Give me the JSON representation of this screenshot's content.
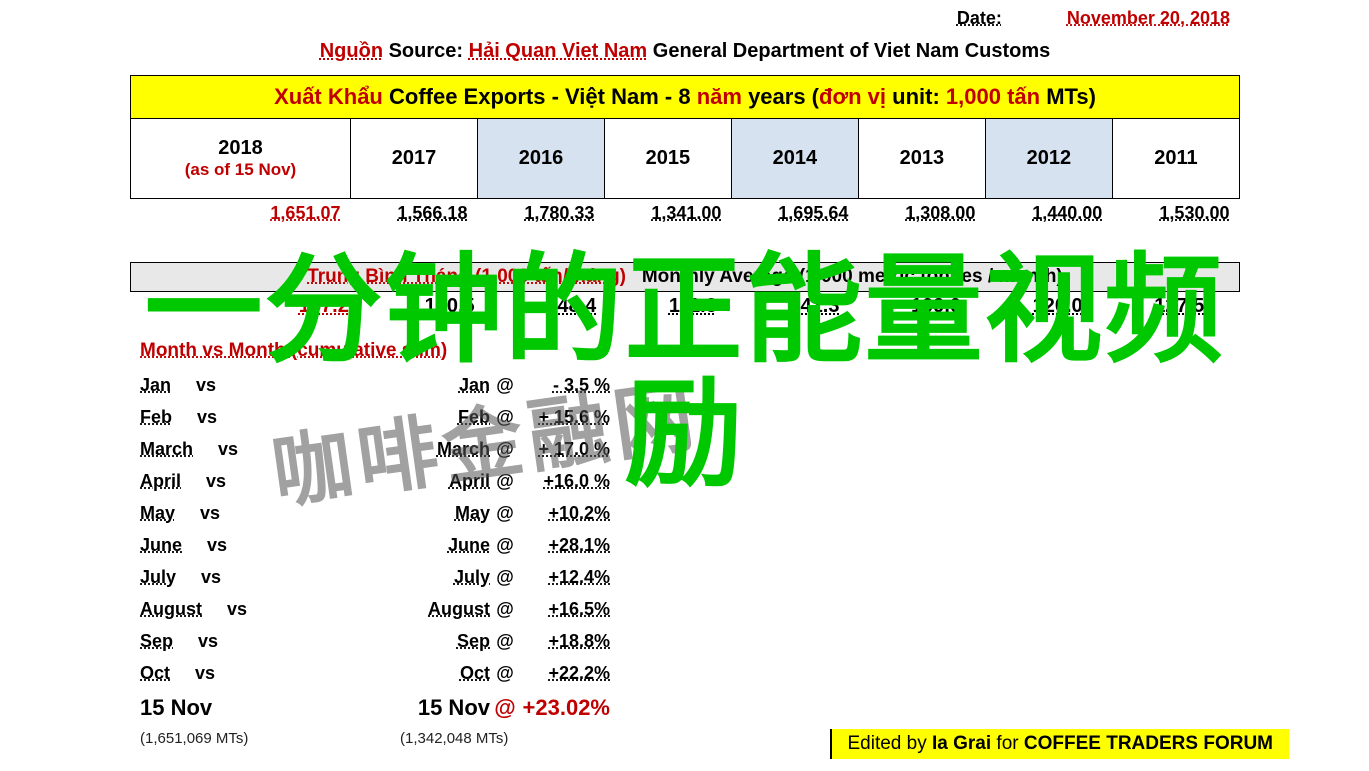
{
  "date": {
    "label": "Date:",
    "value": "November 20, 2018"
  },
  "source": {
    "nguon": "Nguồn",
    "src": "Source:",
    "haiquan": "Hải Quan Viet Nam",
    "gdept": "General Department of Viet Nam Customs"
  },
  "title": {
    "xk": "Xuất Khẩu",
    "ce": "Coffee Exports - Việt Nam - 8",
    "nam": "năm",
    "years": "years (",
    "donvi": "đơn vị",
    "unit": "unit:",
    "qty": "1,000 tấn",
    "mts": "MTs)"
  },
  "years": {
    "y2018": "2018",
    "asof": "(as of 15 Nov)",
    "list": [
      "2017",
      "2016",
      "2015",
      "2014",
      "2013",
      "2012",
      "2011"
    ]
  },
  "totals": [
    "1,651.07",
    "1,566.18",
    "1,780.33",
    "1,341.00",
    "1,695.64",
    "1,308.00",
    "1,440.00",
    "1,530.00"
  ],
  "monthly_header": {
    "vn": "Trung Bình Tháng (1.000 tấn/tháng)",
    "en": "Monthly Average (1,000 metric tonnes / month)"
  },
  "monthly_avg": [
    "157.2",
    "130.5",
    "148.4",
    "111.8",
    "141.3",
    "109.0",
    "120.0",
    "127.5"
  ],
  "mvm": {
    "title": "Month vs Month (cumulative sum)",
    "rows": [
      {
        "a": "Jan",
        "vs": "vs",
        "b": "Jan",
        "pct": "- 3.5 %"
      },
      {
        "a": "Feb",
        "vs": "vs",
        "b": "Feb",
        "pct": "+ 15.6 %"
      },
      {
        "a": "March",
        "vs": "vs",
        "b": "March",
        "pct": "+ 17.0 %"
      },
      {
        "a": "April",
        "vs": "vs",
        "b": "April",
        "pct": "+16.0 %"
      },
      {
        "a": "May",
        "vs": "vs",
        "b": "May",
        "pct": "+10.2%"
      },
      {
        "a": "June",
        "vs": "vs",
        "b": "June",
        "pct": "+28.1%"
      },
      {
        "a": "July",
        "vs": "vs",
        "b": "July",
        "pct": "+12.4%"
      },
      {
        "a": "August",
        "vs": "vs",
        "b": "August",
        "pct": "+16.5%"
      },
      {
        "a": "Sep",
        "vs": "vs",
        "b": "Sep",
        "pct": "+18.8%"
      },
      {
        "a": "Oct",
        "vs": "vs",
        "b": "Oct",
        "pct": "+22.2%"
      }
    ],
    "final": {
      "a": "15 Nov",
      "b": "15 Nov",
      "pct": "+23.02%"
    },
    "note_a": "(1,651,069 MTs)",
    "note_b": "(1,342,048 MTs)"
  },
  "watermark": "咖啡金融网",
  "overlay": {
    "l1": "一分钟的正能量视频",
    "l2": "励"
  },
  "credit": {
    "pre": "Edited by ",
    "name": "Ia Grai",
    "post": " for ",
    "forum": "COFFEE TRADERS FORUM"
  }
}
